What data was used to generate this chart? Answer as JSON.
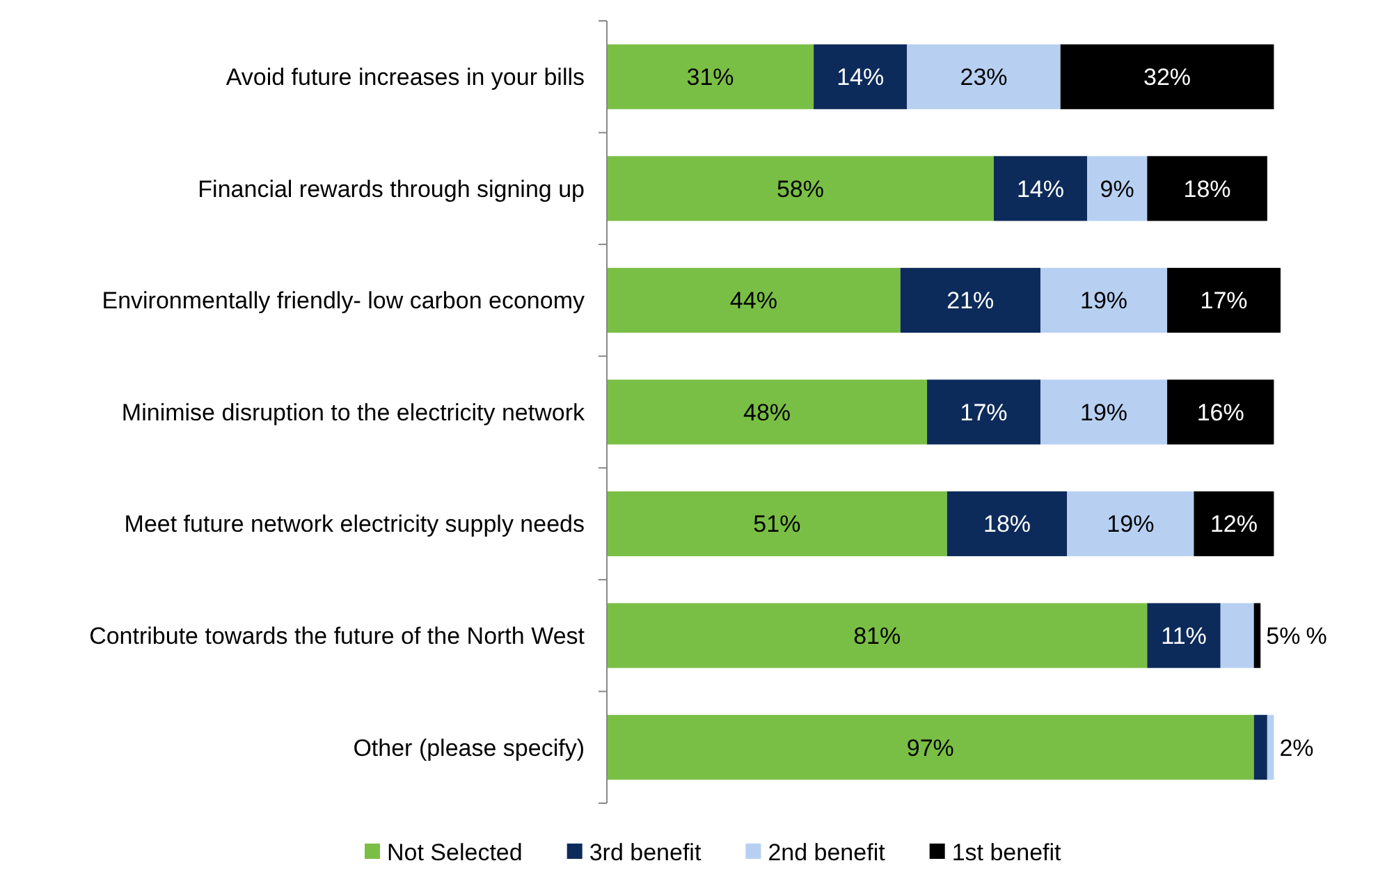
{
  "chart_data": {
    "type": "bar",
    "orientation": "horizontal",
    "stacked": true,
    "xlim": [
      0,
      101
    ],
    "tick_labels": "y",
    "legend": "bottom",
    "categories": [
      "Avoid future increases in your bills",
      "Financial rewards through signing up",
      "Environmentally friendly- low carbon economy",
      "Minimise disruption to the electricity network",
      "Meet future network electricity supply needs",
      "Contribute towards the future of the North West",
      "Other (please specify)"
    ],
    "series": [
      {
        "name": "Not Selected",
        "color": "#7abf45",
        "values": [
          31,
          58,
          44,
          48,
          51,
          81,
          97
        ],
        "value_labels": [
          "31%",
          "58%",
          "44%",
          "48%",
          "51%",
          "81%",
          "97%"
        ]
      },
      {
        "name": "3rd benefit",
        "color": "#0d2b5a",
        "values": [
          14,
          14,
          21,
          17,
          18,
          11,
          2
        ],
        "value_labels": [
          "14%",
          "14%",
          "21%",
          "17%",
          "18%",
          "11%",
          "2%"
        ]
      },
      {
        "name": "2nd benefit",
        "color": "#b7d0f2",
        "values": [
          23,
          9,
          19,
          19,
          19,
          5,
          1
        ],
        "value_labels": [
          "23%",
          "9%",
          "19%",
          "19%",
          "19%",
          "5%",
          null
        ]
      },
      {
        "name": "1st benefit",
        "color": "#000000",
        "values": [
          32,
          18,
          17,
          16,
          12,
          1,
          null
        ],
        "value_labels": [
          "32%",
          "18%",
          "17%",
          "16%",
          "12%",
          "%",
          null
        ]
      }
    ]
  }
}
